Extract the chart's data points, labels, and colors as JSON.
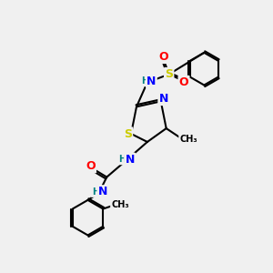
{
  "bg_color": "#f0f0f0",
  "atom_colors": {
    "C": "#000000",
    "N": "#0000ff",
    "O": "#ff0000",
    "S": "#cccc00",
    "H": "#008080"
  },
  "bond_color": "#000000",
  "figsize": [
    3.0,
    3.0
  ],
  "dpi": 100
}
